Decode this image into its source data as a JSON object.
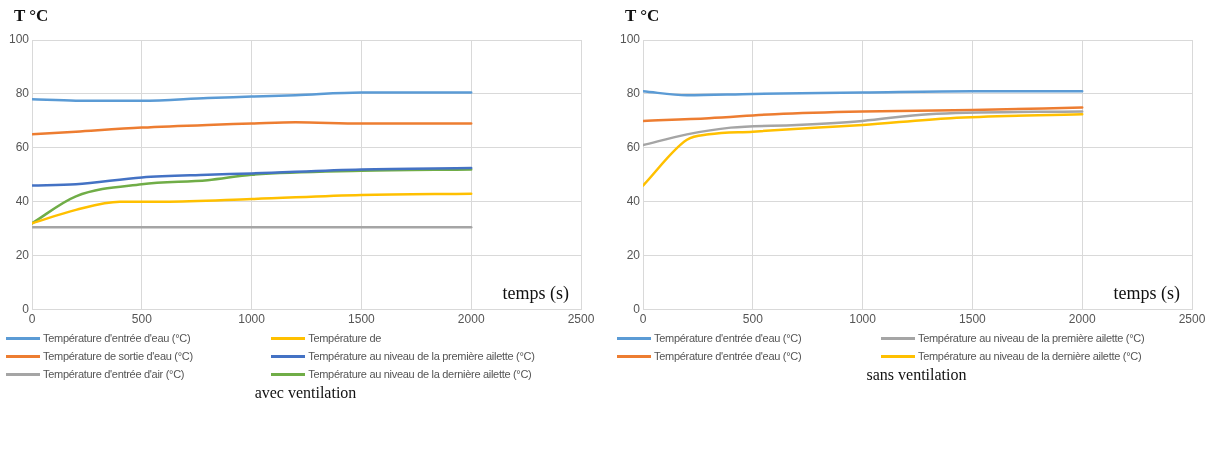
{
  "chart_data": [
    {
      "type": "line",
      "title": "avec ventilation",
      "xlabel": "temps (s)",
      "ylabel": "T °C",
      "xlim": [
        0,
        2500
      ],
      "xticks": [
        0,
        500,
        1000,
        1500,
        2000,
        2500
      ],
      "ylim": [
        0,
        100
      ],
      "yticks": [
        0,
        20,
        40,
        60,
        80,
        100
      ],
      "grid": true,
      "legend": "bottom",
      "marker": "none",
      "line_style": "solid",
      "series": [
        {
          "name": "Température d'entrée d'eau (°C)",
          "color": "#5b9bd5",
          "x": [
            0,
            200,
            500,
            800,
            1000,
            1200,
            1500,
            2000
          ],
          "values": [
            78,
            77.5,
            77.5,
            78.5,
            79,
            79.5,
            80.5,
            80.5
          ]
        },
        {
          "name": "Température de",
          "color": "#ffc000",
          "x": [
            0,
            200,
            400,
            600,
            1000,
            1500,
            2000
          ],
          "values": [
            32,
            37,
            40,
            40,
            41,
            42.5,
            43
          ]
        },
        {
          "name": "Température de sortie d'eau (°C)",
          "color": "#ed7d31",
          "x": [
            0,
            200,
            500,
            800,
            1000,
            1200,
            1500,
            2000
          ],
          "values": [
            65,
            66,
            67.5,
            68.5,
            69,
            69.5,
            69,
            69
          ]
        },
        {
          "name": "Température au niveau de la première ailette (°C)",
          "color": "#4472c4",
          "x": [
            0,
            200,
            500,
            800,
            1000,
            1500,
            2000
          ],
          "values": [
            46,
            46.5,
            49,
            50,
            50.5,
            52,
            52.5
          ]
        },
        {
          "name": "Température d'entrée d'air (°C)",
          "color": "#a5a5a5",
          "x": [
            0,
            500,
            1000,
            1500,
            2000
          ],
          "values": [
            30.5,
            30.5,
            30.5,
            30.5,
            30.5
          ]
        },
        {
          "name": "Température au niveau de la dernière ailette (°C)",
          "color": "#70ad47",
          "x": [
            0,
            200,
            500,
            800,
            1000,
            1500,
            2000
          ],
          "values": [
            32,
            42,
            46.5,
            48,
            50,
            51.5,
            52
          ]
        }
      ]
    },
    {
      "type": "line",
      "title": "sans ventilation",
      "xlabel": "temps (s)",
      "ylabel": "T °C",
      "xlim": [
        0,
        2500
      ],
      "xticks": [
        0,
        500,
        1000,
        1500,
        2000,
        2500
      ],
      "ylim": [
        0,
        100
      ],
      "yticks": [
        0,
        20,
        40,
        60,
        80,
        100
      ],
      "grid": true,
      "legend": "bottom",
      "marker": "none",
      "line_style": "solid",
      "series": [
        {
          "name": "Température d'entrée d'eau (°C)",
          "color": "#5b9bd5",
          "x": [
            0,
            200,
            500,
            1000,
            1500,
            2000
          ],
          "values": [
            81,
            79.5,
            80,
            80.5,
            81,
            81
          ]
        },
        {
          "name": "Température au niveau de la première ailette (°C)",
          "color": "#a5a5a5",
          "x": [
            0,
            200,
            400,
            700,
            1000,
            1300,
            2000
          ],
          "values": [
            61,
            65,
            67.5,
            68.5,
            70,
            72.5,
            73.5
          ]
        },
        {
          "name": "Température d'entrée d'eau (°C)",
          "color": "#ed7d31",
          "x": [
            0,
            300,
            600,
            1000,
            1500,
            2000
          ],
          "values": [
            70,
            71,
            72.5,
            73.5,
            74,
            75
          ]
        },
        {
          "name": "Température au niveau de la dernière ailette (°C)",
          "color": "#ffc000",
          "x": [
            0,
            200,
            300,
            500,
            800,
            1000,
            1400,
            2000
          ],
          "values": [
            46,
            63,
            65,
            66,
            67.5,
            68.5,
            71,
            72.5
          ]
        }
      ]
    }
  ]
}
